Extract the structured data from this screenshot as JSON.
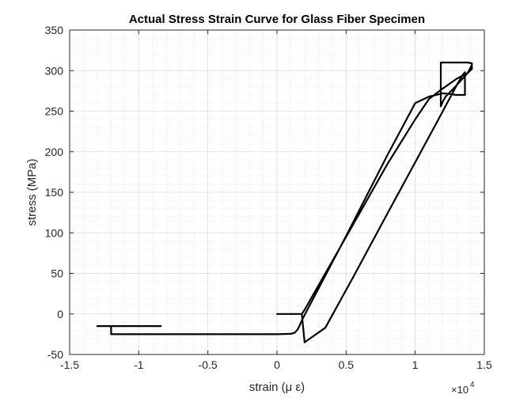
{
  "chart_data": {
    "type": "line",
    "title": "Actual Stress Strain Curve for Glass Fiber Specimen",
    "xlabel": "strain (μ ε)",
    "ylabel": "stress (MPa)",
    "x_exponent_label": "×10",
    "x_exponent_power": "4",
    "x_scale_factor": 10000,
    "xlim": [
      -1.5,
      1.5
    ],
    "ylim": [
      -50,
      350
    ],
    "x_ticks": [
      -1.5,
      -1,
      -0.5,
      0,
      0.5,
      1,
      1.5
    ],
    "x_tick_labels": [
      "-1.5",
      "-1",
      "-0.5",
      "0",
      "0.5",
      "1",
      "1.5"
    ],
    "y_ticks": [
      -50,
      0,
      50,
      100,
      150,
      200,
      250,
      300,
      350
    ],
    "y_tick_labels": [
      "-50",
      "0",
      "50",
      "100",
      "150",
      "200",
      "250",
      "300",
      "350"
    ],
    "grid": true,
    "minor_grid": true,
    "box": true,
    "legend": "none",
    "line_color": "#000000",
    "x_unit_note": "x values are in units of 10^4 microstrain",
    "series": [
      {
        "x": [
          -1.3,
          -0.84,
          -0.84,
          -1.2,
          -1.2,
          -1.0,
          -0.5,
          0.0,
          0.1,
          0.13,
          0.15,
          0.165,
          0.18,
          0.25,
          0.5,
          0.8,
          1.0,
          1.1,
          1.2,
          1.3,
          1.36,
          1.36,
          1.34,
          1.3,
          1.2,
          1.0,
          0.8,
          0.55,
          0.35,
          0.2,
          0.18,
          0.0,
          0.0,
          0.18,
          0.2,
          0.35,
          0.55,
          0.8,
          1.0,
          1.1,
          1.2,
          1.3,
          1.38,
          1.41,
          1.41,
          1.38,
          1.3,
          1.2,
          1.185,
          1.185,
          1.2,
          1.22,
          1.3,
          1.38,
          1.41
        ],
        "y": [
          -15,
          -15,
          -15,
          -15,
          -25,
          -25,
          -25,
          -25,
          -24.5,
          -23,
          -19,
          -14,
          -8,
          15,
          96,
          196,
          260,
          268,
          272,
          270,
          270,
          298,
          294,
          282,
          250,
          187,
          124,
          45,
          -17,
          -35,
          0,
          0,
          0,
          0,
          5,
          50,
          110,
          185,
          240,
          265,
          278,
          290,
          297,
          302,
          309,
          310,
          310,
          310,
          310,
          256,
          262,
          268,
          282,
          297,
          307
        ]
      }
    ]
  }
}
